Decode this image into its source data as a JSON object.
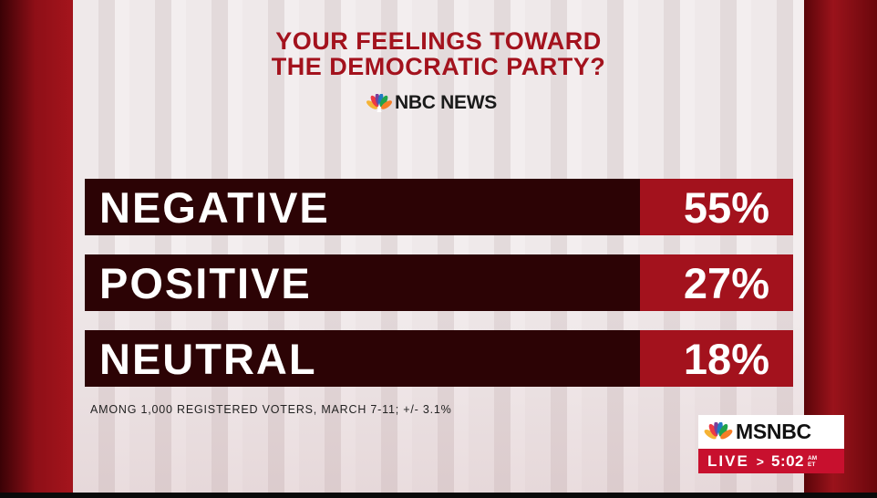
{
  "graphic": {
    "title_line1": "YOUR FEELINGS TOWARD",
    "title_line2": "THE DEMOCRATIC PARTY?",
    "source_logo_text": "NBC NEWS",
    "source_logo_icon": "nbc-peacock-icon",
    "rows": [
      {
        "label": "NEGATIVE",
        "value": "55%"
      },
      {
        "label": "POSITIVE",
        "value": "27%"
      },
      {
        "label": "NEUTRAL",
        "value": "18%"
      }
    ],
    "footnote": "AMONG 1,000 REGISTERED VOTERS, MARCH 7-11; +/- 3.1%"
  },
  "bug": {
    "network": "MSNBC",
    "network_icon": "msnbc-peacock-icon",
    "live_label": "LIVE",
    "chevron": ">",
    "time": "5:02",
    "ampm_top": "AM",
    "ampm_bottom": "ET"
  },
  "colors": {
    "title_red": "#a3121d",
    "bar_dark": "#2c0305",
    "bar_accent": "#a3121d",
    "live_red": "#c8102e"
  }
}
